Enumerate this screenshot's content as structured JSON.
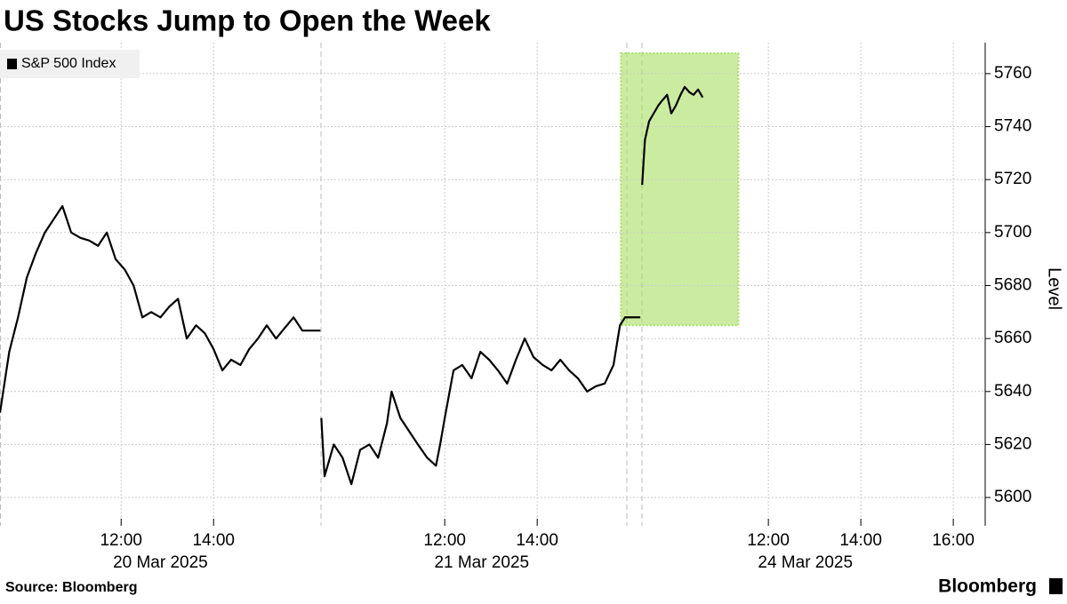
{
  "chart_data": {
    "type": "line",
    "title": "US Stocks Jump to Open the Week",
    "y_label": "Level",
    "source": "Source: Bloomberg",
    "brand": "Bloomberg",
    "legend_position": "top-left",
    "grid": true,
    "x": [
      9.38,
      9.58,
      9.77,
      9.96,
      10.15,
      10.35,
      10.54,
      10.73,
      10.92,
      11.12,
      11.31,
      11.5,
      11.69,
      11.88,
      12.08,
      12.27,
      12.46,
      12.65,
      12.85,
      13.04,
      13.23,
      13.42,
      13.62,
      13.81,
      14.0,
      14.19,
      14.38,
      14.58,
      14.77,
      14.96,
      15.15,
      15.35,
      15.54,
      15.73,
      15.92,
      16.31,
      16.32,
      16.33,
      16.4,
      16.6,
      16.79,
      16.98,
      17.17,
      17.37,
      17.56,
      17.75,
      17.85,
      18.04,
      18.23,
      18.42,
      18.62,
      18.81,
      18.9,
      19.0,
      19.19,
      19.38,
      19.58,
      19.77,
      19.96,
      20.15,
      20.35,
      20.54,
      20.73,
      20.92,
      21.12,
      21.31,
      21.5,
      21.69,
      21.88,
      22.08,
      22.27,
      22.46,
      22.65,
      22.79,
      22.9,
      23.23,
      23.25,
      23.27,
      23.33,
      23.42,
      23.52,
      23.62,
      23.71,
      23.81,
      23.9,
      24.0,
      24.1,
      24.19,
      24.29,
      24.38,
      24.48,
      24.58
    ],
    "series": [
      {
        "name": "S&P 500 Index",
        "color": "#000000",
        "values": [
          5632,
          5655,
          5668,
          5683,
          5692,
          5700,
          5705,
          5710,
          5700,
          5698,
          5697,
          5695,
          5700,
          5690,
          5686,
          5680,
          5668,
          5670,
          5668,
          5672,
          5675,
          5660,
          5665,
          5662,
          5656,
          5648,
          5652,
          5650,
          5656,
          5660,
          5665,
          5660,
          5664,
          5668,
          5663,
          5663,
          null,
          5630,
          5608,
          5620,
          5615,
          5605,
          5618,
          5620,
          5615,
          5628,
          5640,
          5630,
          5625,
          5620,
          5615,
          5612,
          5620,
          5630,
          5648,
          5650,
          5645,
          5655,
          5652,
          5648,
          5643,
          5652,
          5660,
          5653,
          5650,
          5648,
          5652,
          5648,
          5645,
          5640,
          5642,
          5643,
          5650,
          5665,
          5668,
          5668,
          null,
          5718,
          5735,
          5742,
          5745,
          5748,
          5750,
          5752,
          5745,
          5748,
          5752,
          5755,
          5753,
          5752,
          5754,
          5751
        ]
      }
    ],
    "xlim": [
      9.38,
      30.69
    ],
    "xticks": [
      {
        "value": 12,
        "label": "12:00"
      },
      {
        "value": 14,
        "label": "14:00"
      },
      {
        "value": 19,
        "label": "12:00"
      },
      {
        "value": 21,
        "label": "14:00"
      },
      {
        "value": 26,
        "label": "12:00"
      },
      {
        "value": 28,
        "label": "14:00"
      },
      {
        "value": 30,
        "label": "16:00"
      }
    ],
    "x_date_labels": [
      {
        "value": 12.85,
        "label": "20 Mar 2025"
      },
      {
        "value": 19.8,
        "label": "21 Mar 2025"
      },
      {
        "value": 26.8,
        "label": "24 Mar 2025"
      }
    ],
    "ylim": [
      5589.3,
      5771.7
    ],
    "yticks": [
      5600,
      5620,
      5640,
      5660,
      5680,
      5700,
      5720,
      5740,
      5760
    ],
    "highlight": {
      "x": [
        22.81,
        25.35
      ],
      "y": [
        5665,
        5767.7
      ],
      "color": "#a8e060"
    }
  }
}
